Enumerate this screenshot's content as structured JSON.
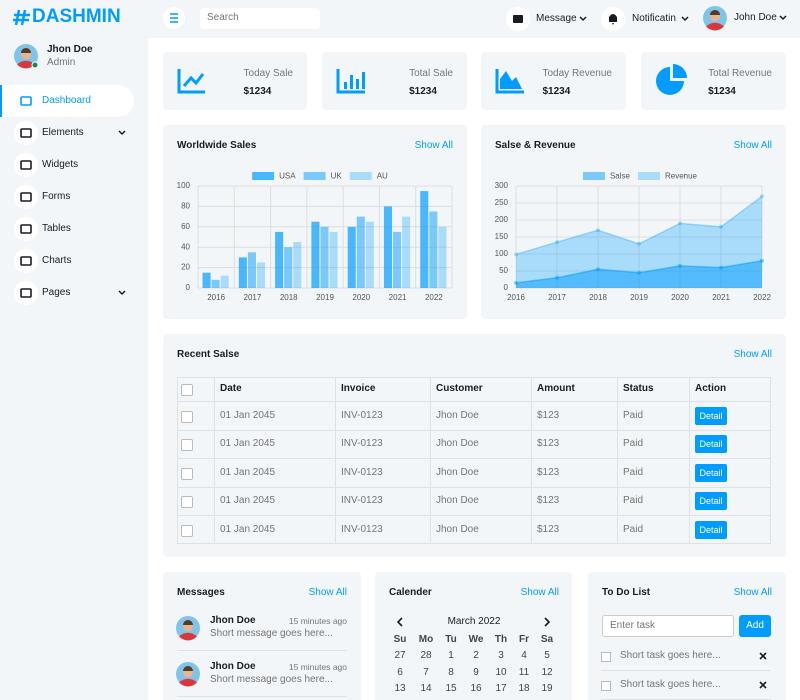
{
  "sidebar": {
    "brand": "DASHMIN",
    "user": {
      "name": "Jhon Doe",
      "role": "Admin"
    },
    "nav": [
      "Dashboard",
      "Elements",
      "Widgets",
      "Forms",
      "Tables",
      "Charts",
      "Pages"
    ]
  },
  "topbar": {
    "search": "Search",
    "message": "Message",
    "notification": "Notificatin",
    "user": "John Doe"
  },
  "stats": [
    {
      "label": "Today Sale",
      "value": "$1234"
    },
    {
      "label": "Total Sale",
      "value": "$1234"
    },
    {
      "label": "Today Revenue",
      "value": "$1234"
    },
    {
      "label": "Total Revenue",
      "value": "$1234"
    }
  ],
  "show_all": "Show All",
  "chart_data": [
    {
      "type": "bar",
      "title": "Worldwide Sales",
      "categories": [
        "2016",
        "2017",
        "2018",
        "2019",
        "2020",
        "2021",
        "2022"
      ],
      "series": [
        {
          "name": "USA",
          "color": "rgba(0,156,255,0.7)",
          "values": [
            15,
            30,
            55,
            65,
            60,
            80,
            95
          ]
        },
        {
          "name": "UK",
          "color": "rgba(0,156,255,0.5)",
          "values": [
            8,
            35,
            40,
            60,
            70,
            55,
            75
          ]
        },
        {
          "name": "AU",
          "color": "rgba(0,156,255,0.3)",
          "values": [
            12,
            25,
            45,
            55,
            65,
            70,
            60
          ]
        }
      ],
      "ylim": [
        0,
        100
      ],
      "yticks": [
        0,
        20,
        40,
        60,
        80,
        100
      ],
      "grid": true
    },
    {
      "type": "area",
      "title": "Salse & Revenue",
      "categories": [
        "2016",
        "2017",
        "2018",
        "2019",
        "2020",
        "2021",
        "2022"
      ],
      "series": [
        {
          "name": "Salse",
          "color": "rgba(0,156,255,0.5)",
          "values": [
            15,
            30,
            55,
            45,
            65,
            60,
            80
          ]
        },
        {
          "name": "Revenue",
          "color": "rgba(0,156,255,0.3)",
          "values": [
            99,
            135,
            170,
            130,
            190,
            180,
            270
          ]
        }
      ],
      "ylim": [
        0,
        300
      ],
      "yticks": [
        0,
        50,
        100,
        150,
        200,
        250,
        300
      ],
      "grid": true
    }
  ],
  "table": {
    "title": "Recent Salse",
    "columns": [
      "Date",
      "Invoice",
      "Customer",
      "Amount",
      "Status",
      "Action"
    ],
    "rows": [
      [
        "01 Jan 2045",
        "INV-0123",
        "Jhon Doe",
        "$123",
        "Paid",
        "Detail"
      ],
      [
        "01 Jan 2045",
        "INV-0123",
        "Jhon Doe",
        "$123",
        "Paid",
        "Detail"
      ],
      [
        "01 Jan 2045",
        "INV-0123",
        "Jhon Doe",
        "$123",
        "Paid",
        "Detail"
      ],
      [
        "01 Jan 2045",
        "INV-0123",
        "Jhon Doe",
        "$123",
        "Paid",
        "Detail"
      ],
      [
        "01 Jan 2045",
        "INV-0123",
        "Jhon Doe",
        "$123",
        "Paid",
        "Detail"
      ]
    ]
  },
  "messages": {
    "title": "Messages",
    "items": [
      {
        "name": "Jhon Doe",
        "time": "15 minutes ago",
        "text": "Short message goes here..."
      },
      {
        "name": "Jhon Doe",
        "time": "15 minutes ago",
        "text": "Short message goes here..."
      }
    ]
  },
  "calendar": {
    "title": "Calender",
    "month": "March 2022",
    "weekdays": [
      "Su",
      "Mo",
      "Tu",
      "We",
      "Th",
      "Fr",
      "Sa"
    ],
    "weeks": [
      [
        27,
        28,
        1,
        2,
        3,
        4,
        5
      ],
      [
        6,
        7,
        8,
        9,
        10,
        11,
        12
      ],
      [
        13,
        14,
        15,
        16,
        17,
        18,
        19
      ]
    ]
  },
  "todo": {
    "title": "To Do List",
    "placeholder": "Enter task",
    "button": "Add",
    "items": [
      "Short task goes here...",
      "Short task goes here..."
    ]
  }
}
